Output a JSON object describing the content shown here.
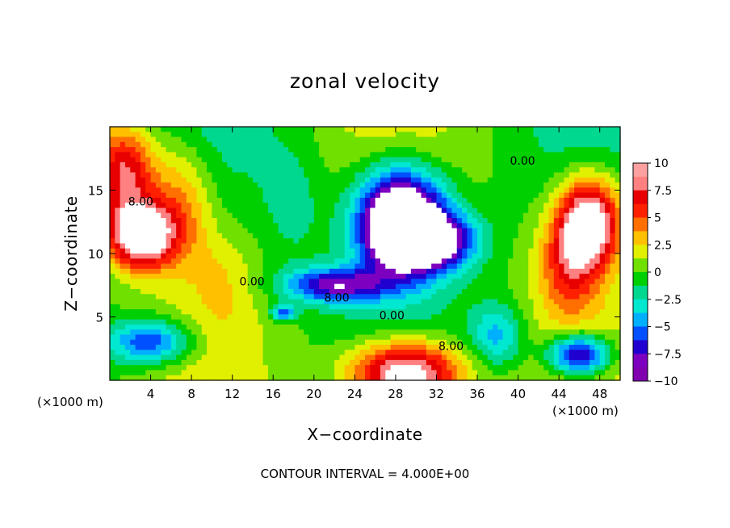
{
  "chart_data": {
    "type": "heatmap",
    "title": "zonal velocity",
    "xlabel": "X−coordinate",
    "ylabel": "Z−coordinate",
    "x_unit_label": "(×1000 m)",
    "z_unit_label": "(×1000 m)",
    "xlim": [
      0,
      50
    ],
    "ylim": [
      0,
      20
    ],
    "x_ticks": [
      4,
      8,
      12,
      16,
      20,
      24,
      28,
      32,
      36,
      40,
      44,
      48
    ],
    "x_tick_labels": [
      "4",
      "8",
      "12",
      "16",
      "20",
      "24",
      "28",
      "32",
      "36",
      "40",
      "44",
      "48"
    ],
    "y_ticks": [
      5,
      10,
      15
    ],
    "y_tick_labels": [
      "5",
      "10",
      "15"
    ],
    "colorbar": {
      "range": [
        -10,
        10
      ],
      "ticks": [
        10,
        7.5,
        5,
        2.5,
        0,
        -2.5,
        -5,
        -7.5,
        -10
      ],
      "tick_labels": [
        "10",
        "7.5",
        "5",
        "2.5",
        "0",
        "−2.5",
        "−5",
        "−7.5",
        "−10"
      ],
      "colors": [
        "#7d00c0",
        "#2000d0",
        "#0050ff",
        "#00b0ff",
        "#00e8d0",
        "#00d890",
        "#00d000",
        "#70e000",
        "#e0f000",
        "#ffc000",
        "#ff7000",
        "#ff2000",
        "#e80000",
        "#ff8080"
      ]
    },
    "contour_labels": [
      {
        "text": "8.00",
        "x": 1.8,
        "z": 13.8
      },
      {
        "text": "0.00",
        "x": 12.7,
        "z": 7.5
      },
      {
        "text": "8.00",
        "x": 21.0,
        "z": 6.2
      },
      {
        "text": "0.00",
        "x": 26.4,
        "z": 4.8
      },
      {
        "text": "8.00",
        "x": 32.2,
        "z": 2.4
      },
      {
        "text": "0.00",
        "x": 39.2,
        "z": 17.0
      }
    ],
    "field_centers": [
      {
        "x": 3.0,
        "z": 11.5,
        "value": 14,
        "sx": 3.2,
        "sz": 2.6
      },
      {
        "x": 1.5,
        "z": 16.5,
        "value": 9,
        "sx": 3.0,
        "sz": 3.5
      },
      {
        "x": 7.0,
        "z": 14.0,
        "value": 5,
        "sx": 3.0,
        "sz": 5.0
      },
      {
        "x": 28.5,
        "z": 12.5,
        "value": -18,
        "sx": 4.2,
        "sz": 4.0
      },
      {
        "x": 32.0,
        "z": 11.0,
        "value": -10,
        "sx": 4.0,
        "sz": 2.2
      },
      {
        "x": 22.0,
        "z": 7.5,
        "value": -9,
        "sx": 5.0,
        "sz": 1.4
      },
      {
        "x": 29.0,
        "z": 0.5,
        "value": 14,
        "sx": 5.5,
        "sz": 2.6
      },
      {
        "x": 47.0,
        "z": 12.5,
        "value": 13,
        "sx": 3.0,
        "sz": 3.5
      },
      {
        "x": 45.0,
        "z": 9.0,
        "value": 6,
        "sx": 3.0,
        "sz": 4.0
      },
      {
        "x": 46.0,
        "z": 2.0,
        "value": -11,
        "sx": 3.0,
        "sz": 1.6
      },
      {
        "x": 4.0,
        "z": 3.0,
        "value": -8,
        "sx": 4.0,
        "sz": 1.8
      },
      {
        "x": 17.0,
        "z": 5.3,
        "value": -7,
        "sx": 1.2,
        "sz": 0.6
      },
      {
        "x": 38.0,
        "z": 3.5,
        "value": -5,
        "sx": 2.5,
        "sz": 2.5
      },
      {
        "x": 11.0,
        "z": 8.0,
        "value": 2,
        "sx": 3.0,
        "sz": 4.0
      },
      {
        "x": 18.0,
        "z": 14.0,
        "value": -2,
        "sx": 3.0,
        "sz": 5.0
      }
    ],
    "contour_interval_text": "CONTOUR INTERVAL =  4.000E+00"
  }
}
